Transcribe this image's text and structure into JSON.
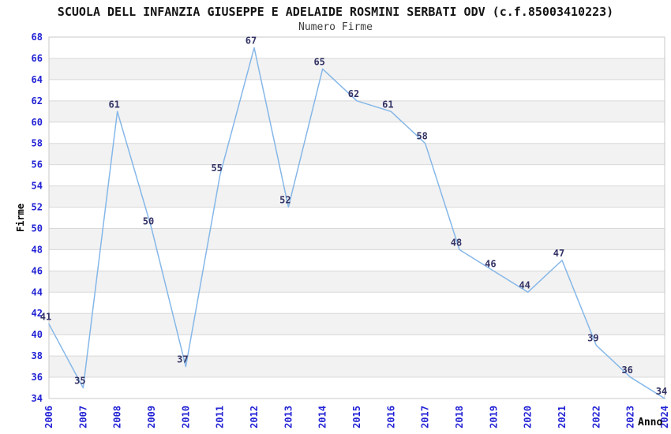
{
  "chart_data": {
    "type": "line",
    "title": "SCUOLA DELL INFANZIA GIUSEPPE E ADELAIDE ROSMINI SERBATI ODV (c.f.85003410223)",
    "subtitle": "Numero Firme",
    "xlabel": "Anno",
    "ylabel": "Firme",
    "categories": [
      "2006",
      "2007",
      "2008",
      "2009",
      "2010",
      "2011",
      "2012",
      "2013",
      "2014",
      "2015",
      "2016",
      "2017",
      "2018",
      "2019",
      "2020",
      "2021",
      "2022",
      "2023",
      "2024"
    ],
    "values": [
      41,
      35,
      61,
      50,
      37,
      55,
      67,
      52,
      65,
      62,
      61,
      58,
      48,
      46,
      44,
      47,
      39,
      36,
      34
    ],
    "ylim": [
      34,
      68
    ],
    "ytick_step": 2,
    "grid": "horizontal-only",
    "band_background": true,
    "legend": "none",
    "point_labels_visible": true,
    "colors": {
      "line": "#85b7e8",
      "point_label": "#333366",
      "tick_label": "#2323d5",
      "band": "#f2f2f2",
      "gridline": "#d8d8d8",
      "plot_border": "#c8c8c8",
      "title": "#141414",
      "subtitle": "#3d3d3d",
      "axis_title": "#000000",
      "background": "#ffffff"
    }
  }
}
